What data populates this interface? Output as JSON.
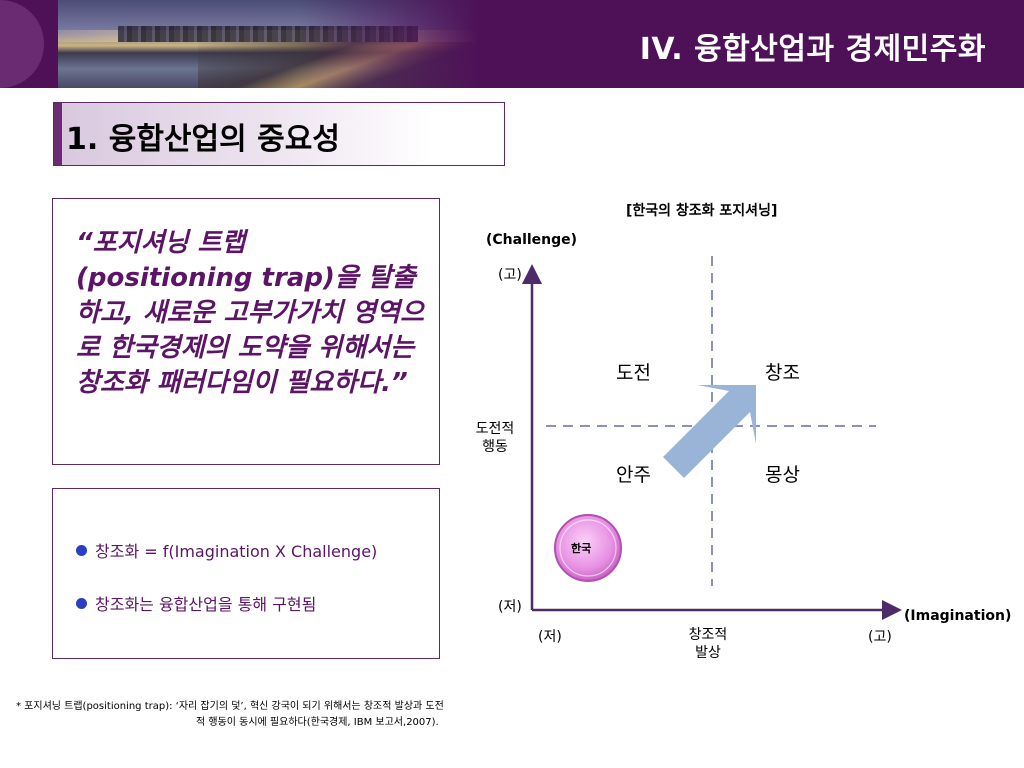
{
  "header": {
    "title": "IV. 융합산업과 경제민주화"
  },
  "section": {
    "title": "1. 융합산업의 중요성"
  },
  "quote": {
    "text": "“포지셔닝 트랩 (positioning trap)을 탈출하고, 새로운 고부가가치 영역으로 한국경제의 도약을 위해서는 창조화 패러다임이 필요하다.”"
  },
  "bullets": [
    "창조화 = f(Imagination X Challenge)",
    "창조화는 융합산업을 통해 구현됨"
  ],
  "chart": {
    "title": "[한국의 창조화 포지셔닝]",
    "y_axis_name": "(Challenge)",
    "x_axis_name": "(Imagination)",
    "y_high": "(고)",
    "y_low": "(저)",
    "x_low": "(저)",
    "x_high": "(고)",
    "y_label_line1": "도전적",
    "y_label_line2": "행동",
    "x_label_line1": "창조적",
    "x_label_line2": "발상",
    "quadrants": {
      "top_left": "도전",
      "top_right": "창조",
      "bottom_left": "안주",
      "bottom_right": "몽상"
    },
    "marker_label": "한국",
    "colors": {
      "axis": "#4e2a68",
      "divider": "#8a8fc4",
      "arrow": "#9ab4d8",
      "marker": "#e78fe3"
    }
  },
  "footnote": {
    "line1": "* 포지셔닝 트랩(positioning trap): ‘자리 잡기의 덫’, 혁신 강국이 되기 위해서는 창조적 발상과 도전",
    "line2": "적 행동이 동시에 필요하다(한국경제, IBM 보고서,2007)."
  }
}
